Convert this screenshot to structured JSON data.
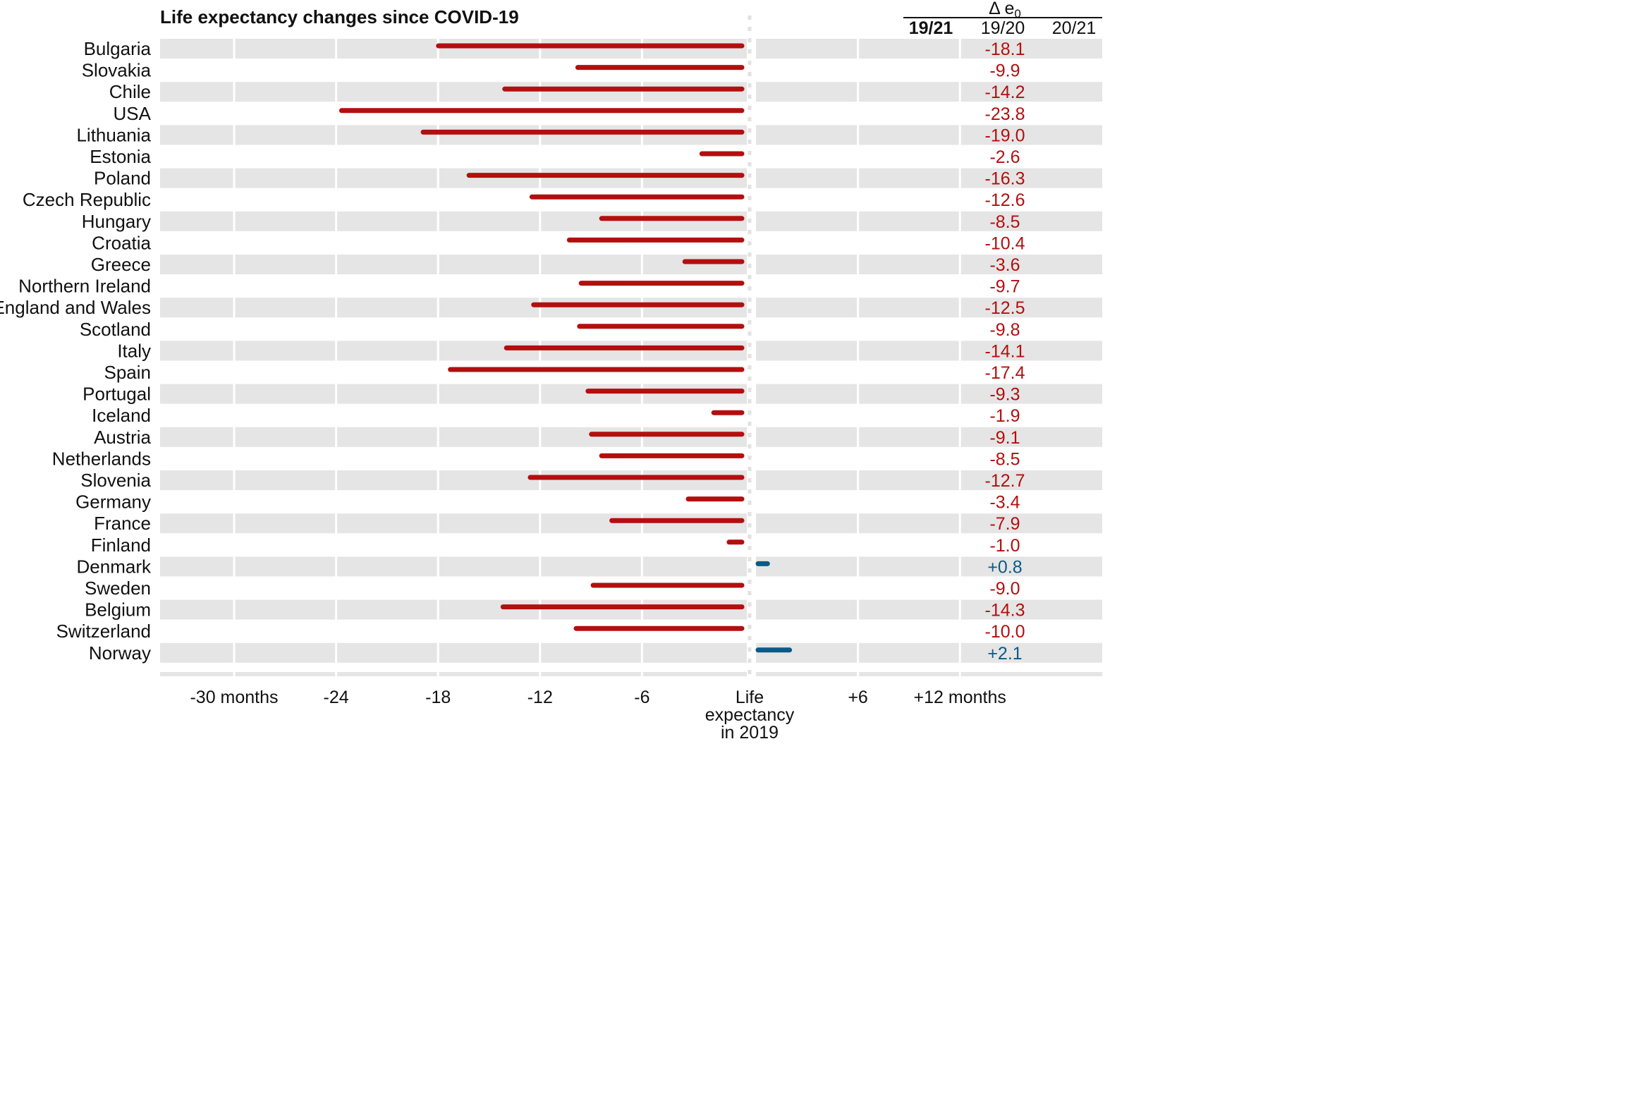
{
  "chart_data": {
    "type": "bar",
    "title": "Life expectancy changes since COVID-19",
    "x_axis": {
      "range": [
        -36,
        15
      ],
      "ticks": [
        -30,
        -24,
        -18,
        -12,
        -6,
        0,
        6,
        12
      ],
      "tick_labels": [
        "-30 months",
        "-24",
        "-18",
        "-12",
        "-6",
        "Life\nexpectancy\nin 2019",
        "+6",
        "+12 months"
      ]
    },
    "table_header": {
      "group_label": "Δ e",
      "group_subscript": "0",
      "columns": [
        "19/21",
        "19/20",
        "20/21"
      ],
      "bold_column": "19/21"
    },
    "categories": [
      "Bulgaria",
      "Slovakia",
      "Chile",
      "USA",
      "Lithuania",
      "Estonia",
      "Poland",
      "Czech Republic",
      "Hungary",
      "Croatia",
      "Greece",
      "Northern Ireland",
      "England and Wales",
      "Scotland",
      "Italy",
      "Spain",
      "Portugal",
      "Iceland",
      "Austria",
      "Netherlands",
      "Slovenia",
      "Germany",
      "France",
      "Finland",
      "Denmark",
      "Sweden",
      "Belgium",
      "Switzerland",
      "Norway"
    ],
    "values": [
      -18.1,
      -9.9,
      -14.2,
      -23.8,
      -19.0,
      -2.6,
      -16.3,
      -12.6,
      -8.5,
      -10.4,
      -3.6,
      -9.7,
      -12.5,
      -9.8,
      -14.1,
      -17.4,
      -9.3,
      -1.9,
      -9.1,
      -8.5,
      -12.7,
      -3.4,
      -7.9,
      -1.0,
      0.8,
      -9.0,
      -14.3,
      -10.0,
      2.1
    ],
    "value_labels": [
      "-18.1",
      "-9.9",
      "-14.2",
      "-23.8",
      "-19.0",
      "-2.6",
      "-16.3",
      "-12.6",
      "-8.5",
      "-10.4",
      "-3.6",
      "-9.7",
      "-12.5",
      "-9.8",
      "-14.1",
      "-17.4",
      "-9.3",
      "-1.9",
      "-9.1",
      "-8.5",
      "-12.7",
      "-3.4",
      "-7.9",
      "-1.0",
      "+0.8",
      "-9.0",
      "-14.3",
      "-10.0",
      "+2.1"
    ],
    "colors": {
      "negative": "#b30f0f",
      "positive": "#0c5a87",
      "band": "#e5e5e5",
      "grid": "#ffffff"
    }
  }
}
